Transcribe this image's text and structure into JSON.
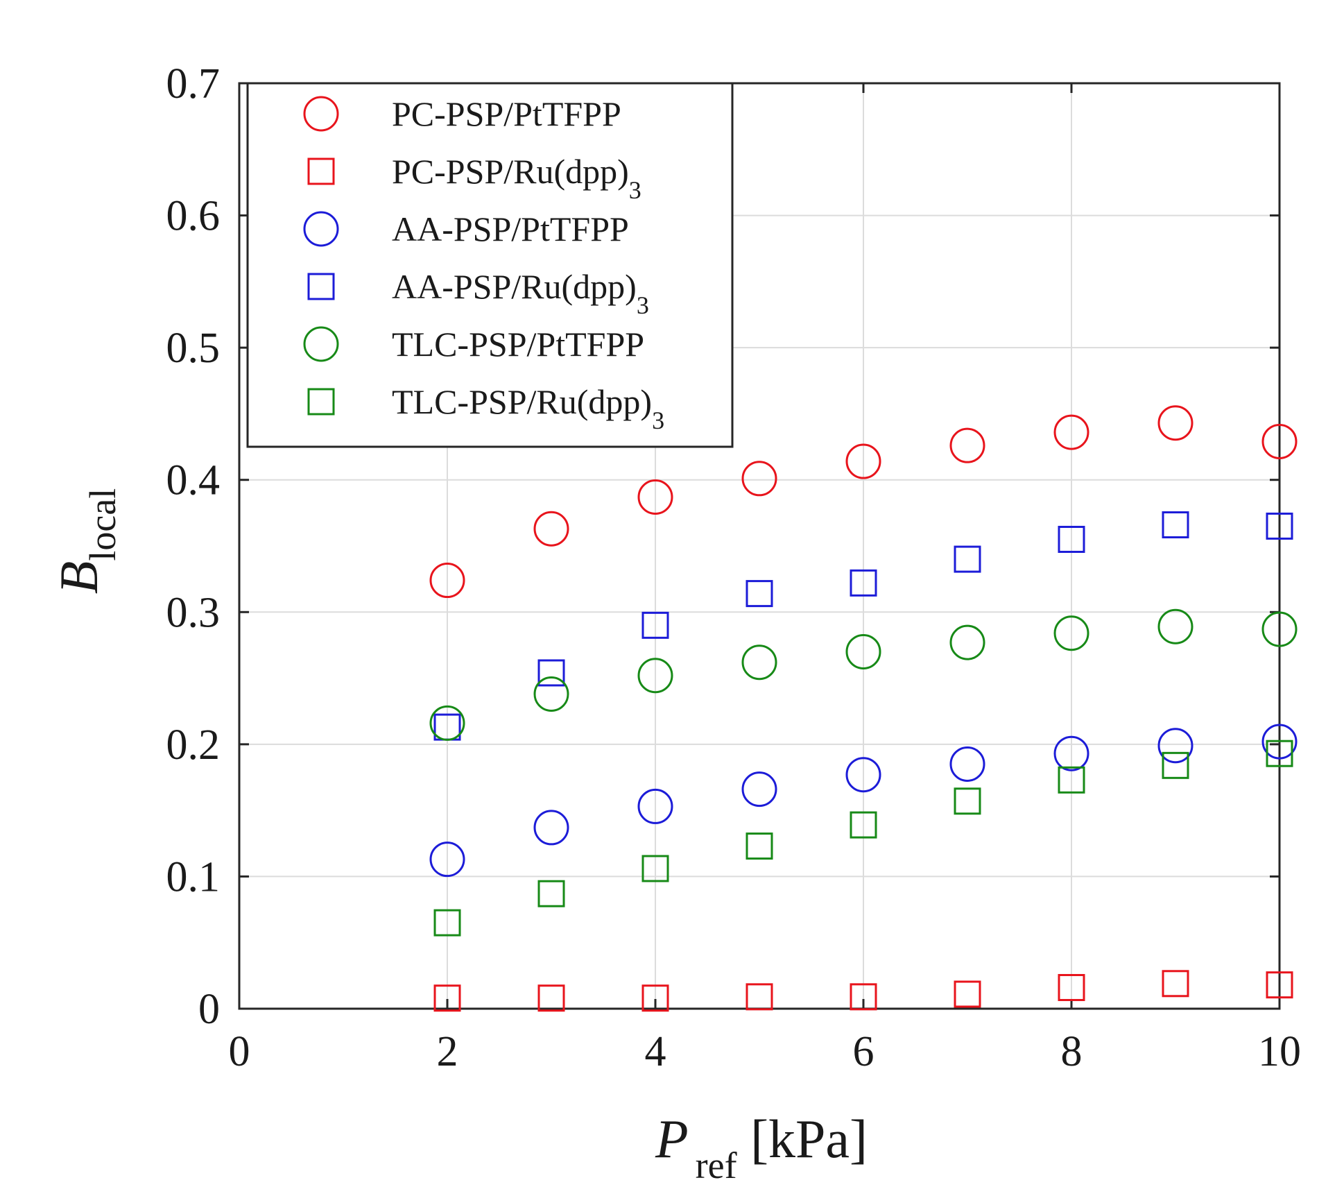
{
  "chart_data": {
    "type": "scatter",
    "title": "",
    "xlabel": {
      "main": "P",
      "sub": "ref",
      "unit": " [kPa]"
    },
    "ylabel": {
      "main": "B",
      "sub": "local"
    },
    "xlim": [
      0,
      10
    ],
    "ylim": [
      0,
      0.7
    ],
    "xticks": [
      0,
      2,
      4,
      6,
      8,
      10
    ],
    "xtick_labels": [
      "0",
      "2",
      "4",
      "6",
      "8",
      "10"
    ],
    "yticks": [
      0,
      0.1,
      0.2,
      0.3,
      0.4,
      0.5,
      0.6,
      0.7
    ],
    "ytick_labels": [
      "0",
      "0.1",
      "0.2",
      "0.3",
      "0.4",
      "0.5",
      "0.6",
      "0.7"
    ],
    "grid": true,
    "legend_position": "top-left",
    "x": [
      2,
      3,
      4,
      5,
      6,
      7,
      8,
      9,
      10
    ],
    "series": [
      {
        "name": "PC-PSP/PtTFPP",
        "label_main": "PC-PSP/PtTFPP",
        "label_sub": "",
        "marker": "circle",
        "color": "#e8141c",
        "values": [
          0.324,
          0.363,
          0.387,
          0.401,
          0.414,
          0.426,
          0.436,
          0.443,
          0.429
        ]
      },
      {
        "name": "PC-PSP/Ru(dpp)3",
        "label_main": "PC-PSP/Ru(dpp)",
        "label_sub": "3",
        "marker": "square",
        "color": "#e8141c",
        "values": [
          0.008,
          0.008,
          0.008,
          0.009,
          0.009,
          0.011,
          0.016,
          0.019,
          0.018
        ]
      },
      {
        "name": "AA-PSP/PtTFPP",
        "label_main": "AA-PSP/PtTFPP",
        "label_sub": "",
        "marker": "circle",
        "color": "#1c1cd8",
        "values": [
          0.113,
          0.137,
          0.153,
          0.166,
          0.177,
          0.185,
          0.193,
          0.199,
          0.202
        ]
      },
      {
        "name": "AA-PSP/Ru(dpp)3",
        "label_main": "AA-PSP/Ru(dpp)",
        "label_sub": "3",
        "marker": "square",
        "color": "#1c1cd8",
        "values": [
          0.213,
          0.254,
          0.29,
          0.314,
          0.322,
          0.34,
          0.355,
          0.366,
          0.365
        ]
      },
      {
        "name": "TLC-PSP/PtTFPP",
        "label_main": "TLC-PSP/PtTFPP",
        "label_sub": "",
        "marker": "circle",
        "color": "#178a17",
        "values": [
          0.216,
          0.238,
          0.252,
          0.262,
          0.27,
          0.277,
          0.284,
          0.289,
          0.287
        ]
      },
      {
        "name": "TLC-PSP/Ru(dpp)3",
        "label_main": "TLC-PSP/Ru(dpp)",
        "label_sub": "3",
        "marker": "square",
        "color": "#178a17",
        "values": [
          0.065,
          0.087,
          0.106,
          0.123,
          0.139,
          0.157,
          0.173,
          0.184,
          0.193
        ]
      }
    ]
  }
}
